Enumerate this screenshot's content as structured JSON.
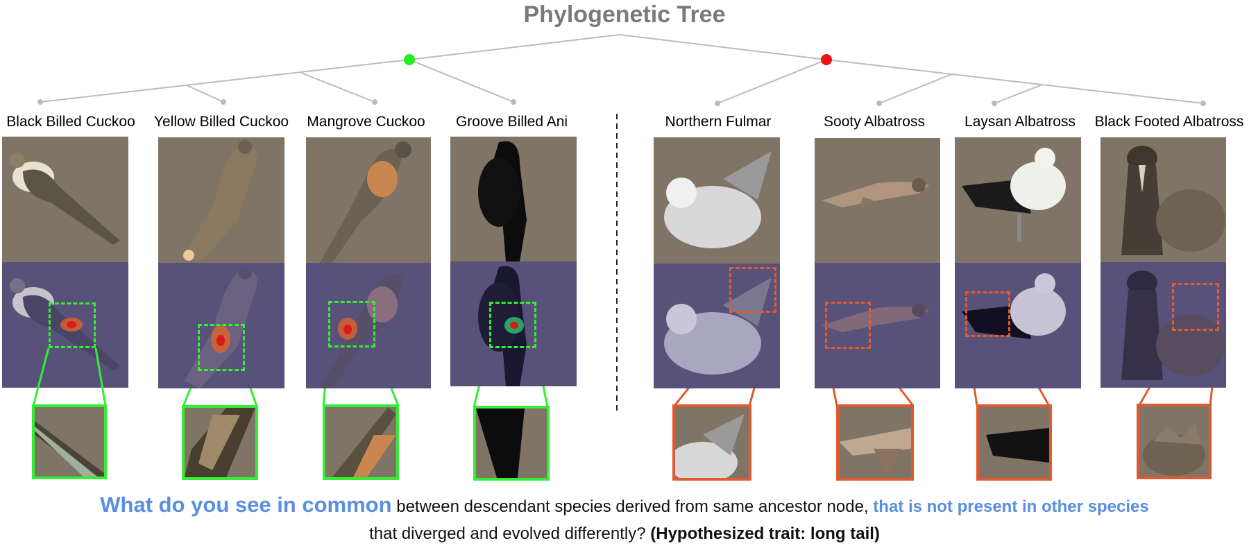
{
  "title": "Phylogenetic Tree",
  "species": [
    {
      "name": "Black Billed Cuckoo",
      "group": "left"
    },
    {
      "name": "Yellow Billed Cuckoo",
      "group": "left"
    },
    {
      "name": "Mangrove Cuckoo",
      "group": "left"
    },
    {
      "name": "Groove Billed Ani",
      "group": "left"
    },
    {
      "name": "Northern Fulmar",
      "group": "right"
    },
    {
      "name": "Sooty Albatross",
      "group": "right"
    },
    {
      "name": "Laysan Albatross",
      "group": "right"
    },
    {
      "name": "Black Footed Albatross",
      "group": "right"
    }
  ],
  "colors": {
    "ancestor_left": "#22ee22",
    "ancestor_right": "#ee1111",
    "highlight_left": "#33ee33",
    "highlight_right": "#e05a30",
    "tree_line": "#bbbbbb",
    "accent_text": "#5b8ee0"
  },
  "caption": {
    "lead": "What do you see in common",
    "mid": " between descendant species derived from same ancestor node, ",
    "accent2": "that is not present in other species",
    "line2_pre": "that diverged and evolved differently? ",
    "line2_bold": "(Hypothesized trait: long tail)"
  }
}
